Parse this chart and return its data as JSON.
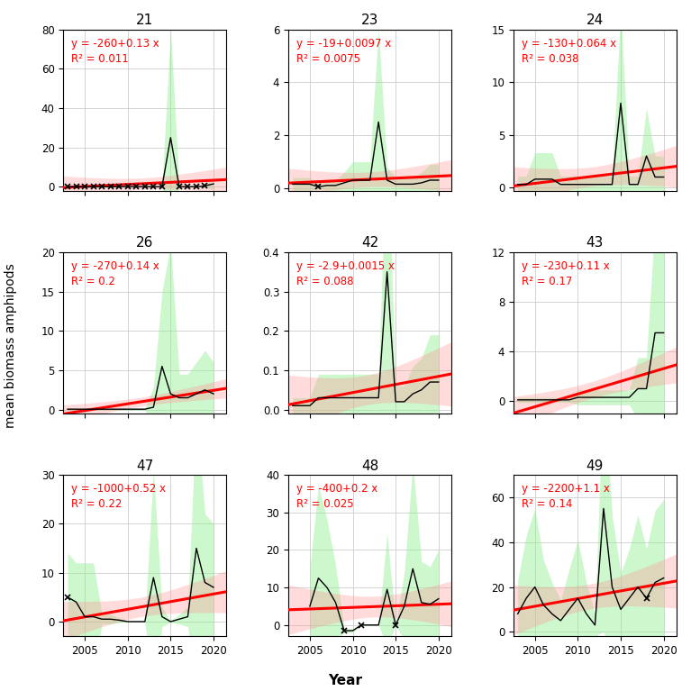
{
  "panels": [
    {
      "id": "21",
      "years": [
        2003,
        2004,
        2005,
        2006,
        2007,
        2008,
        2009,
        2010,
        2011,
        2012,
        2013,
        2014,
        2015,
        2016,
        2017,
        2018,
        2019,
        2020
      ],
      "mean": [
        0.05,
        0.05,
        0.05,
        0.05,
        0.05,
        0.05,
        0.05,
        0.05,
        0.05,
        0.05,
        0.05,
        0.05,
        25.0,
        0.05,
        0.05,
        0.05,
        0.5,
        1.5
      ],
      "sd": [
        0.1,
        0.1,
        0.1,
        0.1,
        0.1,
        0.1,
        0.1,
        0.1,
        0.1,
        0.1,
        0.1,
        0.1,
        55.0,
        0.1,
        0.1,
        0.1,
        1.0,
        3.0
      ],
      "low_n": [
        1,
        1,
        1,
        1,
        1,
        1,
        1,
        1,
        1,
        1,
        1,
        1,
        0,
        1,
        1,
        1,
        1,
        0
      ],
      "eq": "y = -260+0.13 x",
      "r2": "R² = 0.011",
      "ylim": [
        -2,
        80
      ],
      "yticks": [
        0,
        20,
        40,
        60,
        80
      ],
      "ymin_display": 0
    },
    {
      "id": "23",
      "years": [
        2003,
        2004,
        2005,
        2006,
        2007,
        2008,
        2009,
        2010,
        2011,
        2012,
        2013,
        2014,
        2015,
        2016,
        2017,
        2018,
        2019,
        2020
      ],
      "mean": [
        0.15,
        0.15,
        0.15,
        0.05,
        0.1,
        0.1,
        0.2,
        0.3,
        0.3,
        0.3,
        2.5,
        0.3,
        0.15,
        0.15,
        0.15,
        0.2,
        0.3,
        0.3
      ],
      "sd": [
        0.25,
        0.25,
        0.25,
        0.1,
        0.2,
        0.2,
        0.4,
        0.7,
        0.7,
        0.7,
        3.5,
        0.5,
        0.25,
        0.25,
        0.25,
        0.4,
        0.6,
        0.6
      ],
      "low_n": [
        0,
        0,
        0,
        1,
        0,
        0,
        0,
        0,
        0,
        0,
        0,
        0,
        0,
        0,
        0,
        0,
        0,
        0
      ],
      "eq": "y = -19+0.0097 x",
      "r2": "R² = 0.0075",
      "ylim": [
        -0.1,
        6
      ],
      "yticks": [
        0,
        2,
        4,
        6
      ],
      "ymin_display": 0
    },
    {
      "id": "24",
      "years": [
        2003,
        2004,
        2005,
        2006,
        2007,
        2008,
        2009,
        2010,
        2011,
        2012,
        2013,
        2014,
        2015,
        2016,
        2017,
        2018,
        2019,
        2020
      ],
      "mean": [
        0.3,
        0.3,
        0.8,
        0.8,
        0.8,
        0.3,
        0.3,
        0.3,
        0.3,
        0.3,
        0.3,
        0.3,
        8.0,
        0.3,
        0.3,
        3.0,
        1.0,
        1.0
      ],
      "sd": [
        0.8,
        0.8,
        2.5,
        2.5,
        2.5,
        0.8,
        0.8,
        0.8,
        0.8,
        0.8,
        0.8,
        0.8,
        9.0,
        0.8,
        0.8,
        4.5,
        2.0,
        2.0
      ],
      "low_n": [
        0,
        0,
        0,
        0,
        0,
        0,
        0,
        0,
        0,
        0,
        0,
        0,
        0,
        0,
        0,
        0,
        0,
        0
      ],
      "eq": "y = -130+0.064 x",
      "r2": "R² = 0.038",
      "ylim": [
        -0.3,
        15
      ],
      "yticks": [
        0,
        5,
        10,
        15
      ],
      "ymin_display": 0
    },
    {
      "id": "26",
      "years": [
        2003,
        2004,
        2005,
        2006,
        2007,
        2008,
        2009,
        2010,
        2011,
        2012,
        2013,
        2014,
        2015,
        2016,
        2017,
        2018,
        2019,
        2020
      ],
      "mean": [
        0.05,
        0.05,
        0.05,
        0.05,
        0.05,
        0.05,
        0.05,
        0.05,
        0.05,
        0.05,
        0.3,
        5.5,
        2.0,
        1.5,
        1.5,
        2.0,
        2.5,
        2.0
      ],
      "sd": [
        0.1,
        0.1,
        0.1,
        0.1,
        0.1,
        0.1,
        0.1,
        0.1,
        0.1,
        0.1,
        2.5,
        9.5,
        19.0,
        3.0,
        3.0,
        4.0,
        5.0,
        4.0
      ],
      "low_n": [
        0,
        0,
        0,
        0,
        0,
        0,
        0,
        0,
        0,
        0,
        0,
        0,
        0,
        0,
        0,
        0,
        0,
        0
      ],
      "eq": "y = -270+0.14 x",
      "r2": "R² = 0.2",
      "ylim": [
        -0.5,
        20
      ],
      "yticks": [
        0,
        5,
        10,
        15,
        20
      ],
      "ymin_display": 0
    },
    {
      "id": "42",
      "years": [
        2003,
        2004,
        2005,
        2006,
        2007,
        2008,
        2009,
        2010,
        2011,
        2012,
        2013,
        2014,
        2015,
        2016,
        2017,
        2018,
        2019,
        2020
      ],
      "mean": [
        0.01,
        0.01,
        0.01,
        0.03,
        0.03,
        0.03,
        0.03,
        0.03,
        0.03,
        0.03,
        0.03,
        0.35,
        0.02,
        0.02,
        0.04,
        0.05,
        0.07,
        0.07
      ],
      "sd": [
        0.02,
        0.02,
        0.02,
        0.06,
        0.06,
        0.06,
        0.06,
        0.06,
        0.06,
        0.06,
        0.06,
        0.36,
        0.04,
        0.04,
        0.07,
        0.08,
        0.12,
        0.12
      ],
      "low_n": [
        0,
        0,
        0,
        0,
        0,
        0,
        0,
        0,
        0,
        0,
        0,
        0,
        0,
        0,
        0,
        0,
        0,
        0
      ],
      "eq": "y = -2.9+0.0015 x",
      "r2": "R² = 0.088",
      "ylim": [
        -0.01,
        0.4
      ],
      "yticks": [
        0.0,
        0.1,
        0.2,
        0.3,
        0.4
      ],
      "ymin_display": 0
    },
    {
      "id": "43",
      "years": [
        2003,
        2004,
        2005,
        2006,
        2007,
        2008,
        2009,
        2010,
        2011,
        2012,
        2013,
        2014,
        2015,
        2016,
        2017,
        2018,
        2019,
        2020
      ],
      "mean": [
        0.1,
        0.1,
        0.1,
        0.1,
        0.1,
        0.1,
        0.1,
        0.3,
        0.3,
        0.3,
        0.3,
        0.3,
        0.3,
        0.3,
        1.0,
        1.0,
        5.5,
        5.5
      ],
      "sd": [
        0.2,
        0.2,
        0.2,
        0.2,
        0.2,
        0.2,
        0.2,
        0.6,
        0.6,
        0.6,
        0.6,
        0.6,
        0.6,
        0.6,
        2.5,
        2.5,
        9.0,
        9.0
      ],
      "low_n": [
        0,
        0,
        0,
        0,
        0,
        0,
        0,
        0,
        0,
        0,
        0,
        0,
        0,
        0,
        0,
        0,
        0,
        0
      ],
      "eq": "y = -230+0.11 x",
      "r2": "R² = 0.17",
      "ylim": [
        -1,
        12
      ],
      "yticks": [
        0,
        4,
        8,
        12
      ],
      "ymin_display": 0
    },
    {
      "id": "47",
      "years": [
        2003,
        2004,
        2005,
        2006,
        2007,
        2008,
        2009,
        2010,
        2011,
        2012,
        2013,
        2014,
        2015,
        2016,
        2017,
        2018,
        2019,
        2020
      ],
      "mean": [
        5.0,
        4.0,
        1.0,
        1.0,
        0.5,
        0.5,
        0.3,
        0.0,
        0.0,
        0.0,
        9.0,
        1.0,
        0.0,
        0.5,
        1.0,
        15.0,
        8.0,
        7.0
      ],
      "sd": [
        9.0,
        8.0,
        11.0,
        11.0,
        1.0,
        1.0,
        0.5,
        0.1,
        0.1,
        0.1,
        22.0,
        2.0,
        0.1,
        1.0,
        2.0,
        28.0,
        14.0,
        13.0
      ],
      "low_n": [
        1,
        0,
        0,
        0,
        0,
        0,
        0,
        0,
        0,
        0,
        0,
        0,
        0,
        0,
        0,
        0,
        0,
        0
      ],
      "eq": "y = -1000+0.52 x",
      "r2": "R² = 0.22",
      "ylim": [
        -3,
        30
      ],
      "yticks": [
        0,
        10,
        20,
        30
      ],
      "ymin_display": 0
    },
    {
      "id": "48",
      "years": [
        2005,
        2006,
        2007,
        2008,
        2009,
        2010,
        2011,
        2012,
        2013,
        2014,
        2015,
        2016,
        2017,
        2018,
        2019,
        2020
      ],
      "mean": [
        5.0,
        12.5,
        10.0,
        6.0,
        -1.5,
        -1.5,
        0.0,
        0.0,
        0.0,
        9.5,
        0.0,
        5.0,
        15.0,
        6.0,
        5.5,
        7.0
      ],
      "sd": [
        10.0,
        25.0,
        18.0,
        10.0,
        0.5,
        0.5,
        0.1,
        0.1,
        0.1,
        15.0,
        0.1,
        9.0,
        28.0,
        11.0,
        10.0,
        13.0
      ],
      "low_n": [
        0,
        0,
        0,
        0,
        1,
        0,
        1,
        0,
        0,
        0,
        1,
        0,
        0,
        0,
        0,
        0
      ],
      "eq": "y = -400+0.2 x",
      "r2": "R² = 0.025",
      "ylim": [
        -3,
        40
      ],
      "yticks": [
        0,
        10,
        20,
        30,
        40
      ],
      "ymin_display": 0
    },
    {
      "id": "49",
      "years": [
        2003,
        2004,
        2005,
        2006,
        2007,
        2008,
        2009,
        2010,
        2011,
        2012,
        2013,
        2014,
        2015,
        2016,
        2017,
        2018,
        2019,
        2020
      ],
      "mean": [
        8.0,
        15.0,
        20.0,
        12.0,
        8.0,
        5.0,
        10.0,
        15.0,
        8.0,
        3.0,
        55.0,
        20.0,
        10.0,
        15.0,
        20.0,
        15.0,
        22.0,
        24.0
      ],
      "sd": [
        15.0,
        28.0,
        35.0,
        20.0,
        14.0,
        9.0,
        18.0,
        26.0,
        14.0,
        5.0,
        55.0,
        32.0,
        16.0,
        22.0,
        32.0,
        22.0,
        32.0,
        35.0
      ],
      "low_n": [
        0,
        0,
        0,
        0,
        0,
        0,
        0,
        0,
        0,
        0,
        0,
        0,
        0,
        0,
        0,
        1,
        0,
        0
      ],
      "eq": "y = -2200+1.1 x",
      "r2": "R² = 0.14",
      "ylim": [
        -2,
        70
      ],
      "yticks": [
        0,
        20,
        40,
        60
      ],
      "ymin_display": 0
    }
  ],
  "xlim": [
    2002.5,
    2021.5
  ],
  "xticks": [
    2005,
    2010,
    2015,
    2020
  ],
  "green_fill": "#90EE90",
  "green_fill_alpha": 0.45,
  "red_line_color": "#FF0000",
  "red_fill_color": "#FF9999",
  "red_fill_alpha": 0.35,
  "black_line": "#000000",
  "grid_color": "#CCCCCC",
  "bg_color": "#FFFFFF",
  "eq_color": "#FF0000",
  "title_fontsize": 11,
  "axis_label_fontsize": 10,
  "tick_fontsize": 8.5,
  "eq_fontsize": 8.5
}
